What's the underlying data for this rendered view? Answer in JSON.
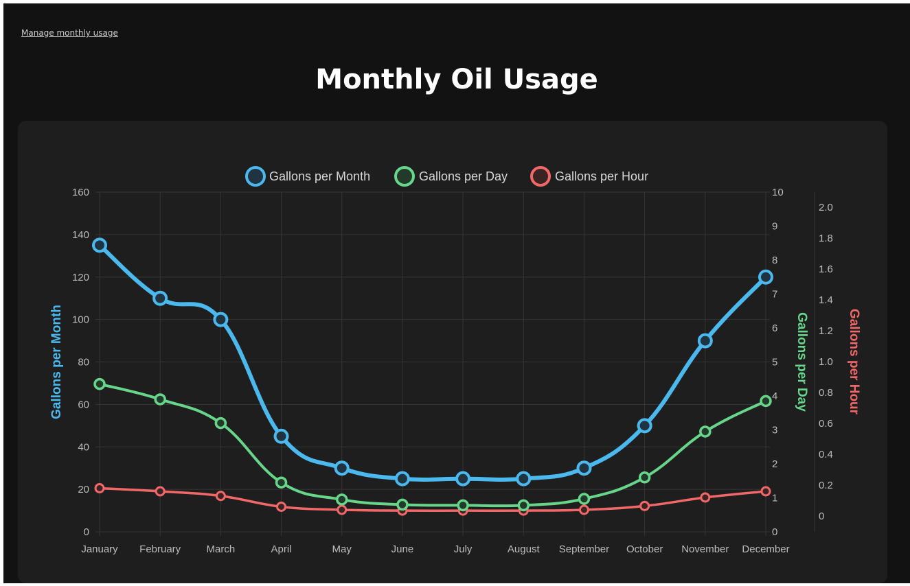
{
  "header": {
    "manage_link": "Manage monthly usage",
    "title": "Monthly Oil Usage"
  },
  "chart_data": {
    "type": "line",
    "categories": [
      "January",
      "February",
      "March",
      "April",
      "May",
      "June",
      "July",
      "August",
      "September",
      "October",
      "November",
      "December"
    ],
    "series": [
      {
        "name": "Gallons per Month",
        "axis": "left",
        "color": "#4bb9ee",
        "values": [
          135,
          110,
          100,
          45,
          30,
          25,
          25,
          25,
          30,
          50,
          90,
          120
        ]
      },
      {
        "name": "Gallons per Day",
        "axis": "right1",
        "color": "#68d68a",
        "values": [
          4.35,
          3.9,
          3.2,
          1.45,
          0.95,
          0.8,
          0.78,
          0.78,
          0.97,
          1.6,
          2.95,
          3.85
        ]
      },
      {
        "name": "Gallons per Hour",
        "axis": "right2",
        "color": "#f26868",
        "values": [
          0.18,
          0.16,
          0.13,
          0.06,
          0.04,
          0.035,
          0.035,
          0.035,
          0.04,
          0.065,
          0.12,
          0.16
        ]
      }
    ],
    "axes": {
      "left": {
        "label": "Gallons per Month",
        "min": 0,
        "max": 160,
        "ticks": [
          "0",
          "20",
          "40",
          "60",
          "80",
          "100",
          "120",
          "140",
          "160"
        ]
      },
      "right1": {
        "label": "Gallons per Day",
        "min": 0,
        "max": 10,
        "ticks": [
          "0",
          "1",
          "2",
          "3",
          "4",
          "5",
          "6",
          "7",
          "8",
          "9",
          "10"
        ]
      },
      "right2": {
        "label": "Gallons per Hour",
        "min": 0,
        "max": 2.0,
        "ticks": [
          "0",
          "0.2",
          "0.4",
          "0.6",
          "0.8",
          "1.0",
          "1.2",
          "1.4",
          "1.6",
          "1.8",
          "2.0"
        ]
      }
    },
    "grid": true,
    "legend_position": "top"
  }
}
